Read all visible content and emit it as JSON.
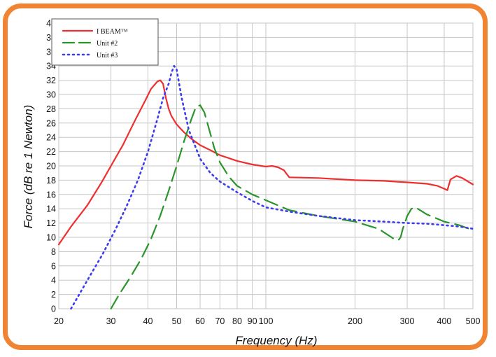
{
  "chart_data": {
    "type": "line",
    "xlabel": "Frequency (Hz)",
    "ylabel": "Force (dB re 1 Newton)",
    "x_scale": "log",
    "xlim": [
      20,
      500
    ],
    "ylim": [
      0,
      40
    ],
    "grid": true,
    "legend_position": "top-left",
    "x_ticks": [
      20,
      30,
      40,
      50,
      60,
      70,
      80,
      90,
      100,
      200,
      300,
      400,
      500
    ],
    "x_tick_labels": [
      "20",
      "30",
      "40",
      "50",
      "60",
      "70",
      "80",
      "90",
      "100",
      "200",
      "300",
      "400",
      "500"
    ],
    "y_ticks": [
      0,
      2,
      4,
      6,
      8,
      10,
      12,
      14,
      16,
      18,
      20,
      22,
      24,
      26,
      28,
      30,
      32,
      34,
      36,
      38,
      40
    ],
    "y_tick_labels": [
      "0",
      "2",
      "4",
      "6",
      "8",
      "10",
      "12",
      "14",
      "16",
      "18",
      "20",
      "22",
      "24",
      "26",
      "28",
      "30",
      "32",
      "34",
      "36",
      "38",
      "40"
    ],
    "series": [
      {
        "name": "I BEAM™",
        "color": "#ee2f2f",
        "style": "solid",
        "x": [
          20,
          22,
          25,
          28,
          30,
          33,
          36,
          39,
          41,
          43,
          44,
          45,
          46,
          47,
          48,
          50,
          53,
          56,
          60,
          65,
          70,
          80,
          90,
          100,
          105,
          110,
          115,
          120,
          150,
          200,
          250,
          300,
          350,
          380,
          400,
          410,
          420,
          440,
          460,
          500
        ],
        "y": [
          9,
          11.5,
          14.5,
          17.8,
          20,
          23,
          26.2,
          29,
          30.8,
          31.8,
          32,
          31.5,
          29.5,
          28,
          27,
          25.8,
          24.7,
          23.8,
          22.9,
          22.2,
          21.5,
          20.7,
          20.2,
          19.9,
          20,
          19.8,
          19.4,
          18.4,
          18.3,
          18,
          17.9,
          17.7,
          17.5,
          17.2,
          16.8,
          16.6,
          18.1,
          18.6,
          18.3,
          17.4
        ]
      },
      {
        "name": "Unit #2",
        "color": "#2a952a",
        "style": "dash",
        "x": [
          30,
          32,
          35,
          38,
          41,
          44,
          47,
          50,
          53,
          56,
          58,
          60,
          62,
          64,
          67,
          70,
          75,
          80,
          90,
          100,
          120,
          150,
          200,
          240,
          270,
          280,
          285,
          290,
          300,
          310,
          320,
          350,
          400,
          450,
          500
        ],
        "y": [
          0,
          2,
          4.5,
          7,
          9.8,
          13,
          16.5,
          20,
          23.5,
          26.5,
          28.2,
          28.5,
          27.5,
          25.5,
          22.5,
          20.5,
          18.5,
          17.2,
          16,
          15.2,
          13.8,
          13,
          12.2,
          11.2,
          9.8,
          9.6,
          10,
          11.2,
          13,
          14,
          14.2,
          13.2,
          12.2,
          11.7,
          11
        ]
      },
      {
        "name": "Unit #3",
        "color": "#3c3cee",
        "style": "dot",
        "x": [
          22,
          25,
          28,
          31,
          34,
          37,
          40,
          43,
          45,
          47,
          48,
          49,
          50,
          52,
          55,
          60,
          65,
          70,
          80,
          90,
          100,
          120,
          150,
          200,
          250,
          300,
          350,
          400,
          450,
          500
        ],
        "y": [
          0,
          4,
          7.5,
          11,
          14.5,
          18,
          22,
          26.5,
          29.5,
          31.5,
          33,
          34,
          33.5,
          29.5,
          25,
          21,
          19,
          17.8,
          16.3,
          15.1,
          14.2,
          13.6,
          13,
          12.4,
          12.2,
          12,
          11.9,
          11.7,
          11.5,
          11.2
        ]
      }
    ]
  }
}
